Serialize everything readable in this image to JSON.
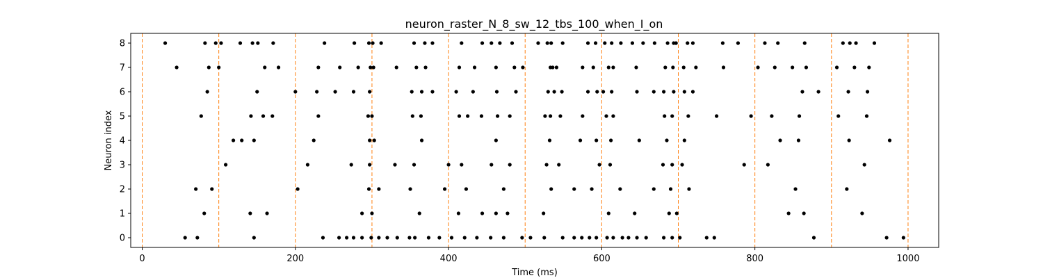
{
  "chart_data": {
    "type": "scatter",
    "title": "neuron_raster_N_8_sw_12_tbs_100_when_I_on",
    "xlabel": "Time (ms)",
    "ylabel": "Neuron index",
    "xlim": [
      -15,
      1040
    ],
    "ylim": [
      -0.4,
      8.4
    ],
    "xticks": [
      0,
      200,
      400,
      600,
      800,
      1000
    ],
    "yticks": [
      0,
      1,
      2,
      3,
      4,
      5,
      6,
      7,
      8
    ],
    "grid": false,
    "marker_color": "#000000",
    "vline_color": "#ff7f0e",
    "vlines_x": [
      0,
      100,
      200,
      300,
      400,
      500,
      600,
      700,
      800,
      900,
      1000
    ],
    "series": [
      {
        "neuron": 0,
        "x": [
          56,
          72,
          146,
          236,
          257,
          267,
          276,
          287,
          299,
          309,
          320,
          333,
          349,
          356,
          374,
          388,
          404,
          421,
          437,
          455,
          472,
          496,
          507,
          525,
          549,
          564,
          574,
          584,
          593,
          607,
          615,
          627,
          635,
          646,
          658,
          681,
          692,
          702,
          737,
          747,
          877,
          972,
          994
        ]
      },
      {
        "neuron": 1,
        "x": [
          81,
          141,
          163,
          287,
          300,
          362,
          413,
          444,
          462,
          477,
          524,
          609,
          643,
          688,
          698,
          844,
          864,
          940
        ]
      },
      {
        "neuron": 2,
        "x": [
          70,
          91,
          203,
          296,
          309,
          350,
          395,
          423,
          472,
          534,
          564,
          587,
          624,
          668,
          690,
          714,
          853,
          920
        ]
      },
      {
        "neuron": 3,
        "x": [
          109,
          216,
          273,
          297,
          330,
          355,
          400,
          417,
          456,
          480,
          528,
          544,
          597,
          611,
          680,
          692,
          705,
          786,
          817,
          943
        ]
      },
      {
        "neuron": 4,
        "x": [
          119,
          130,
          146,
          224,
          297,
          303,
          365,
          462,
          532,
          572,
          593,
          612,
          649,
          685,
          708,
          833,
          857,
          923,
          976
        ]
      },
      {
        "neuron": 5,
        "x": [
          77,
          142,
          158,
          170,
          230,
          295,
          300,
          353,
          364,
          414,
          425,
          443,
          464,
          480,
          526,
          533,
          546,
          575,
          606,
          615,
          682,
          692,
          713,
          750,
          795,
          822,
          858,
          909,
          946
        ]
      },
      {
        "neuron": 6,
        "x": [
          85,
          150,
          200,
          228,
          252,
          276,
          297,
          352,
          365,
          379,
          410,
          432,
          463,
          488,
          530,
          538,
          548,
          582,
          594,
          602,
          613,
          646,
          668,
          681,
          694,
          708,
          719,
          862,
          883,
          922,
          947
        ]
      },
      {
        "neuron": 7,
        "x": [
          45,
          87,
          100,
          160,
          178,
          230,
          258,
          282,
          298,
          302,
          332,
          358,
          370,
          414,
          434,
          462,
          486,
          497,
          533,
          536,
          541,
          575,
          589,
          609,
          615,
          645,
          683,
          693,
          707,
          723,
          759,
          804,
          826,
          849,
          867,
          907,
          930,
          949
        ]
      },
      {
        "neuron": 8,
        "x": [
          30,
          82,
          96,
          103,
          128,
          144,
          151,
          171,
          238,
          277,
          296,
          301,
          312,
          355,
          369,
          379,
          417,
          444,
          456,
          467,
          483,
          517,
          529,
          534,
          549,
          582,
          592,
          604,
          613,
          625,
          640,
          654,
          669,
          686,
          694,
          697,
          712,
          719,
          758,
          778,
          813,
          830,
          865,
          915,
          924,
          932,
          956
        ]
      }
    ]
  }
}
